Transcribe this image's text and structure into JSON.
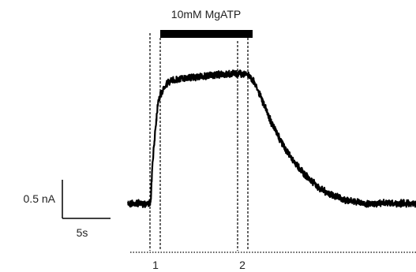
{
  "chart_data": {
    "type": "line",
    "title": "",
    "xlabel": "",
    "ylabel": "",
    "application_bar_label": "10mM MgATP",
    "scale_bar": {
      "vertical_label": "0.5 nA",
      "vertical_value_nA": 0.5,
      "horizontal_label": "5s",
      "horizontal_value_s": 5
    },
    "time_markers": [
      "1",
      "2"
    ],
    "series": [
      {
        "x": [
          0,
          1,
          2,
          3,
          3.2,
          3.6,
          4,
          5,
          6,
          8,
          10,
          12,
          14,
          15,
          16,
          17,
          18,
          19,
          20,
          21,
          22,
          23,
          24,
          25,
          26,
          27,
          28,
          29,
          30,
          31,
          32,
          33,
          34,
          35,
          36,
          37,
          38
        ],
        "values": [
          0,
          0,
          0,
          0,
          0.25,
          0.55,
          0.78,
          0.9,
          0.93,
          0.95,
          0.96,
          0.97,
          0.98,
          0.98,
          0.97,
          0.88,
          0.74,
          0.6,
          0.49,
          0.39,
          0.31,
          0.24,
          0.18,
          0.13,
          0.09,
          0.06,
          0.04,
          0.02,
          0.01,
          0.0,
          0.0,
          0.0,
          0.0,
          0.0,
          0.0,
          0.0,
          0.0
        ]
      }
    ]
  }
}
